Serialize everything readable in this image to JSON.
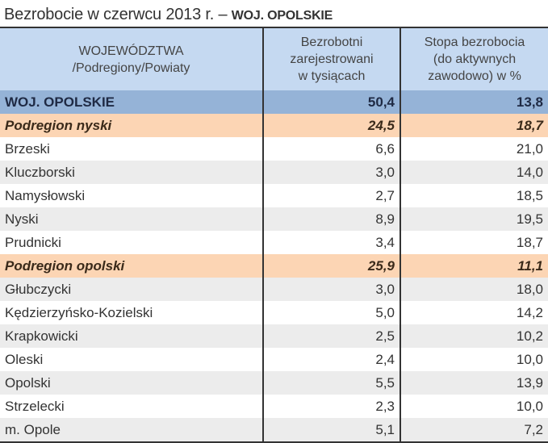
{
  "title": {
    "main": "Bezrobocie w czerwcu 2013 r. – ",
    "bold": "WOJ. OPOLSKIE"
  },
  "table": {
    "headers": {
      "col1_line1": "WOJEWÓDZTWA",
      "col1_line2": "/Podregiony/Powiaty",
      "col2_line1": "Bezrobotni",
      "col2_line2": "zarejestrowani",
      "col2_line3": "w tysiącach",
      "col3_line1": "Stopa bezrobocia",
      "col3_line2": "(do aktywnych",
      "col3_line3": "zawodowo) w %"
    },
    "rows": [
      {
        "name": "WOJ. OPOLSKIE",
        "unemployed": "50,4",
        "rate": "13,8",
        "type": "total"
      },
      {
        "name": "Podregion nyski",
        "unemployed": "24,5",
        "rate": "18,7",
        "type": "subregion"
      },
      {
        "name": "Brzeski",
        "unemployed": "6,6",
        "rate": "21,0",
        "type": "county"
      },
      {
        "name": "Kluczborski",
        "unemployed": "3,0",
        "rate": "14,0",
        "type": "county"
      },
      {
        "name": "Namysłowski",
        "unemployed": "2,7",
        "rate": "18,5",
        "type": "county"
      },
      {
        "name": "Nyski",
        "unemployed": "8,9",
        "rate": "19,5",
        "type": "county"
      },
      {
        "name": "Prudnicki",
        "unemployed": "3,4",
        "rate": "18,7",
        "type": "county"
      },
      {
        "name": "Podregion opolski",
        "unemployed": "25,9",
        "rate": "11,1",
        "type": "subregion"
      },
      {
        "name": "Głubczycki",
        "unemployed": "3,0",
        "rate": "18,0",
        "type": "county"
      },
      {
        "name": "Kędzierzyńsko-Kozielski",
        "unemployed": "5,0",
        "rate": "14,2",
        "type": "county"
      },
      {
        "name": "Krapkowicki",
        "unemployed": "2,5",
        "rate": "10,2",
        "type": "county"
      },
      {
        "name": "Oleski",
        "unemployed": "2,4",
        "rate": "10,0",
        "type": "county"
      },
      {
        "name": "Opolski",
        "unemployed": "5,5",
        "rate": "13,9",
        "type": "county"
      },
      {
        "name": "Strzelecki",
        "unemployed": "2,3",
        "rate": "10,0",
        "type": "county"
      },
      {
        "name": "m. Opole",
        "unemployed": "5,1",
        "rate": "7,2",
        "type": "county"
      }
    ]
  },
  "colors": {
    "header_bg": "#c5d9f1",
    "total_bg": "#95b3d7",
    "subregion_bg": "#fcd5b4",
    "alt_row_bg": "#ececec"
  }
}
